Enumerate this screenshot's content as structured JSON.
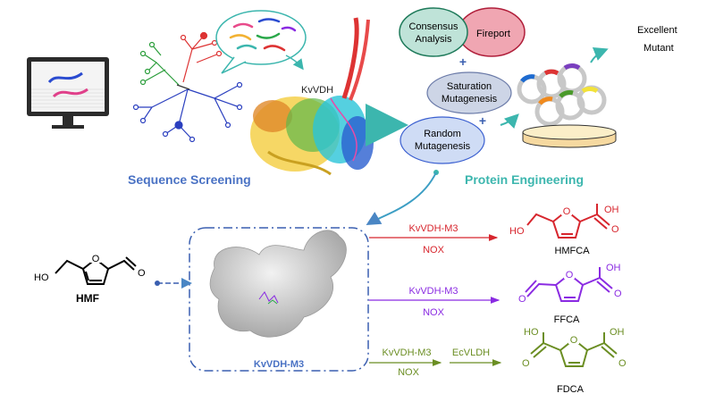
{
  "sequence_screening": {
    "title": "Sequence Screening",
    "protein_label": "KvVDH"
  },
  "protein_engineering": {
    "title": "Protein Engineering",
    "methods": [
      {
        "label_line1": "Consensus",
        "label_line2": "Analysis"
      },
      {
        "label_line1": "Fireport",
        "label_line2": ""
      },
      {
        "label_line1": "Saturation",
        "label_line2": "Mutagenesis"
      },
      {
        "label_line1": "Random",
        "label_line2": "Mutagenesis"
      }
    ],
    "plus": "+",
    "result_line1": "Excellent",
    "result_line2": "Mutant"
  },
  "substrate": {
    "name": "HMF",
    "ho": "HO",
    "o": "O"
  },
  "enzyme_label": "KvVDH-M3",
  "reactions": [
    {
      "enzyme": "KvVDH-M3",
      "cofactor": "NOX",
      "product": "HMFCA",
      "color": "#d7262e"
    },
    {
      "enzyme": "KvVDH-M3",
      "cofactor": "NOX",
      "product": "FFCA",
      "color": "#8a2be2"
    },
    {
      "enzyme": "KvVDH-M3",
      "cofactor": "NOX",
      "second_enzyme": "EcVLDH",
      "product": "FDCA",
      "color": "#6b8e23"
    }
  ],
  "atoms": {
    "oh": "OH",
    "ho": "HO",
    "o": "O"
  },
  "colors": {
    "blue_title": "#4a72c4",
    "teal_title": "#3cb6ae",
    "black": "#000000"
  }
}
